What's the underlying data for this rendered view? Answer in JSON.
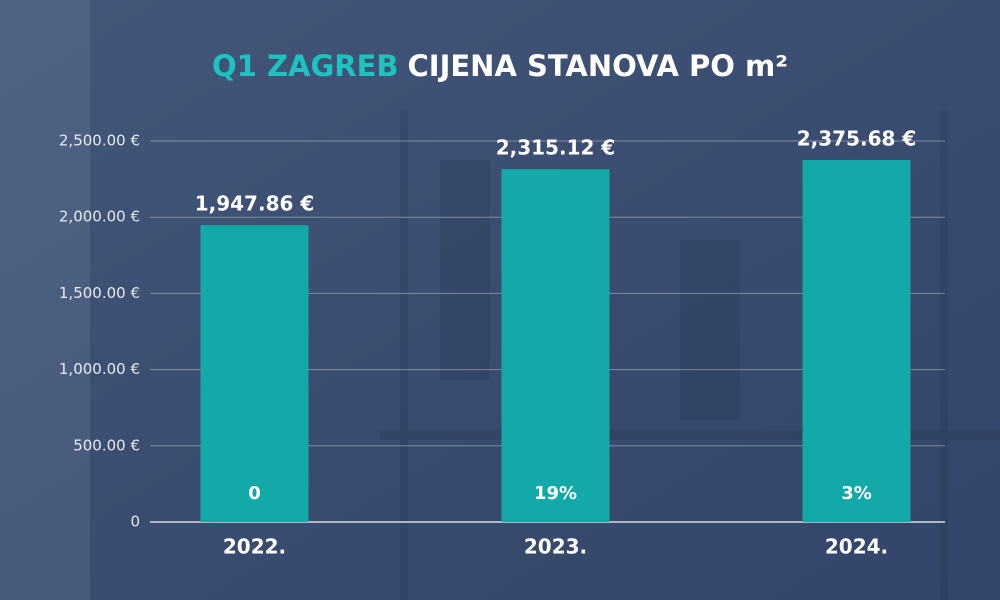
{
  "chart_data": {
    "type": "bar",
    "title_prefix": "Q1 ZAGREB",
    "title": "CIJENA STANOVA PO m²",
    "categories": [
      "2022.",
      "2023.",
      "2024."
    ],
    "values": [
      1947.86,
      2315.12,
      2375.68
    ],
    "value_labels": [
      "1,947.86 €",
      "2,315.12 €",
      "2,375.68 €"
    ],
    "change_labels": [
      "0",
      "19%",
      "3%"
    ],
    "color": "#12a9a8",
    "ylim": [
      0,
      2500
    ],
    "yticks": [
      0,
      {
        "value": 500,
        "label": "500.00 €"
      },
      {
        "value": 1000,
        "label": "1,000.00 €"
      },
      {
        "value": 1500,
        "label": "1,500.00 €"
      },
      {
        "value": 2000,
        "label": "2,000.00 €"
      },
      {
        "value": 2500,
        "label": "2,500.00 €"
      }
    ],
    "grid": true
  }
}
